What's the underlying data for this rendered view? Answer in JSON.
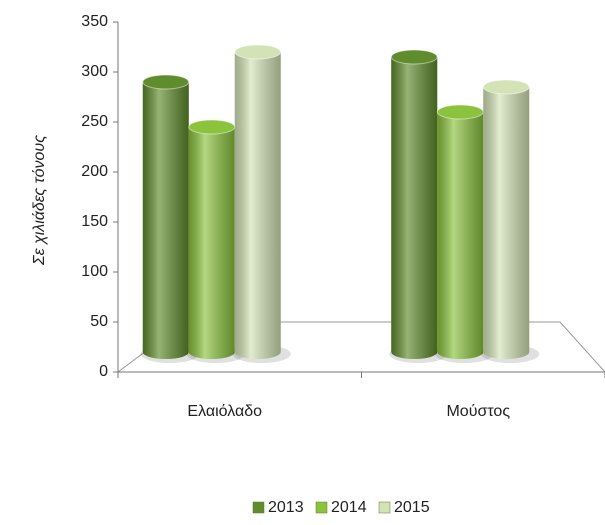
{
  "chart_data": {
    "type": "bar3d",
    "y_axis_label": "Σε χιλιάδες τόνους",
    "categories": [
      "Ελαιόλαδο",
      "Μούστος"
    ],
    "series": [
      {
        "name": "2013",
        "color": "#5f8c2c",
        "values": [
          270,
          295
        ]
      },
      {
        "name": "2014",
        "color": "#8bc33d",
        "values": [
          225,
          240
        ]
      },
      {
        "name": "2015",
        "color": "#d3e3b6",
        "values": [
          300,
          265
        ]
      }
    ],
    "ylim": [
      0,
      350
    ],
    "yticks": [
      0,
      50,
      100,
      150,
      200,
      250,
      300,
      350
    ],
    "legend": "bottom"
  }
}
